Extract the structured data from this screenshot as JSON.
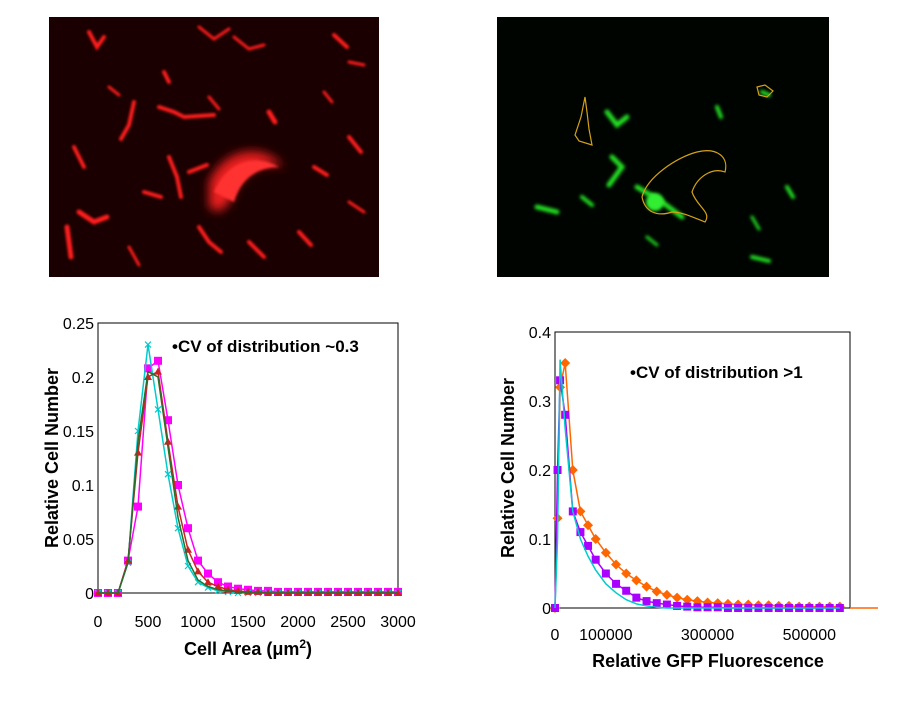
{
  "images": {
    "left": {
      "description": "red fluorescent cells",
      "color": "#ff1a1a"
    },
    "right": {
      "description": "green fluorescent cells with yellow outlines",
      "color": "#22dd22",
      "outline_color": "#d4a017"
    }
  },
  "chart_data": [
    {
      "type": "line",
      "annotation": "•CV of distribution ~0.3",
      "xlabel": "Cell Area (μm",
      "xlabel_sup": "2",
      "xlabel_close": ")",
      "ylabel": "Relative Cell Number",
      "xlim": [
        0,
        3000
      ],
      "ylim": [
        0,
        0.25
      ],
      "xticks": [
        "0",
        "500",
        "1000",
        "1500",
        "2000",
        "2500",
        "3000"
      ],
      "yticks": [
        "0",
        "0.05",
        "0.1",
        "0.15",
        "0.2",
        "0.25"
      ],
      "x": [
        0,
        100,
        200,
        300,
        400,
        500,
        600,
        700,
        800,
        900,
        1000,
        1100,
        1200,
        1300,
        1400,
        1500,
        1600,
        1700,
        1800,
        1900,
        2000,
        2100,
        2200,
        2300,
        2400,
        2500,
        2600,
        2700,
        2800,
        2900,
        3000
      ],
      "series": [
        {
          "color": "#ff00ff",
          "marker": "square",
          "values": [
            0,
            0,
            0,
            0.03,
            0.08,
            0.208,
            0.215,
            0.16,
            0.1,
            0.06,
            0.03,
            0.018,
            0.01,
            0.006,
            0.004,
            0.003,
            0.002,
            0.002,
            0.001,
            0.001,
            0.001,
            0.001,
            0.001,
            0.001,
            0.001,
            0.001,
            0.001,
            0.001,
            0.001,
            0.001,
            0.001
          ]
        },
        {
          "color": "#00cccc",
          "marker": "x",
          "values": [
            0,
            0,
            0,
            0.028,
            0.15,
            0.23,
            0.17,
            0.11,
            0.06,
            0.025,
            0.01,
            0.005,
            0.002,
            0.001,
            0,
            0,
            0,
            0,
            0,
            0,
            0,
            0,
            0,
            0,
            0,
            0,
            0,
            0,
            0,
            0,
            0
          ]
        },
        {
          "color": "#cc2222",
          "marker": "triangle",
          "values": [
            0,
            0,
            0,
            0.03,
            0.13,
            0.2,
            0.205,
            0.14,
            0.08,
            0.04,
            0.02,
            0.01,
            0.006,
            0.003,
            0.002,
            0.001,
            0.001,
            0,
            0,
            0,
            0,
            0,
            0,
            0,
            0,
            0,
            0,
            0,
            0,
            0,
            0
          ]
        },
        {
          "color": "#2a6e2a",
          "marker": "none",
          "values": [
            0,
            0,
            0,
            0.028,
            0.14,
            0.205,
            0.2,
            0.135,
            0.07,
            0.03,
            0.012,
            0.006,
            0.003,
            0.002,
            0.001,
            0,
            0,
            0,
            0,
            0,
            0,
            0,
            0,
            0,
            0,
            0,
            0,
            0,
            0,
            0,
            0
          ]
        }
      ]
    },
    {
      "type": "line",
      "annotation": "•CV of distribution >1",
      "xlabel": "Relative GFP Fluorescence",
      "ylabel": "Relative Cell Number",
      "xlim": [
        0,
        580000
      ],
      "ylim": [
        0,
        0.4
      ],
      "xticks": [
        {
          "value": 0,
          "label": "0"
        },
        {
          "value": 100000,
          "label": "100000"
        },
        {
          "value": 300000,
          "label": "300000"
        },
        {
          "value": 500000,
          "label": "500000"
        }
      ],
      "yticks": [
        "0",
        "0.1",
        "0.2",
        "0.3",
        "0.4"
      ],
      "x": [
        0,
        5000,
        10000,
        20000,
        35000,
        50000,
        65000,
        80000,
        100000,
        120000,
        140000,
        160000,
        180000,
        200000,
        220000,
        240000,
        260000,
        280000,
        300000,
        320000,
        340000,
        360000,
        380000,
        400000,
        420000,
        440000,
        460000,
        480000,
        500000,
        520000,
        540000,
        560000
      ],
      "series": [
        {
          "color": "#ff6600",
          "marker": "diamond",
          "values": [
            0,
            0.13,
            0.32,
            0.355,
            0.2,
            0.14,
            0.12,
            0.1,
            0.08,
            0.063,
            0.05,
            0.04,
            0.031,
            0.024,
            0.019,
            0.015,
            0.012,
            0.01,
            0.008,
            0.007,
            0.006,
            0.005,
            0.005,
            0.004,
            0.004,
            0.003,
            0.003,
            0.002,
            0.002,
            0.002,
            0.002,
            0.002
          ]
        },
        {
          "color": "#aa00ff",
          "marker": "square",
          "values": [
            0,
            0.2,
            0.33,
            0.28,
            0.14,
            0.11,
            0.09,
            0.07,
            0.05,
            0.035,
            0.025,
            0.015,
            0.01,
            0.007,
            0.005,
            0.003,
            0.002,
            0.001,
            0.001,
            0.001,
            0,
            0,
            0,
            0,
            0,
            0,
            0,
            0,
            0,
            0,
            0,
            0
          ]
        },
        {
          "color": "#00cccc",
          "marker": "none",
          "values": [
            0,
            0.1,
            0.36,
            0.26,
            0.14,
            0.1,
            0.075,
            0.055,
            0.035,
            0.022,
            0.012,
            0.006,
            0.003,
            0.001,
            0,
            0,
            0,
            0,
            0,
            0,
            0,
            0,
            0,
            0,
            0,
            0,
            0,
            0,
            0,
            0,
            0,
            0
          ]
        }
      ]
    }
  ]
}
